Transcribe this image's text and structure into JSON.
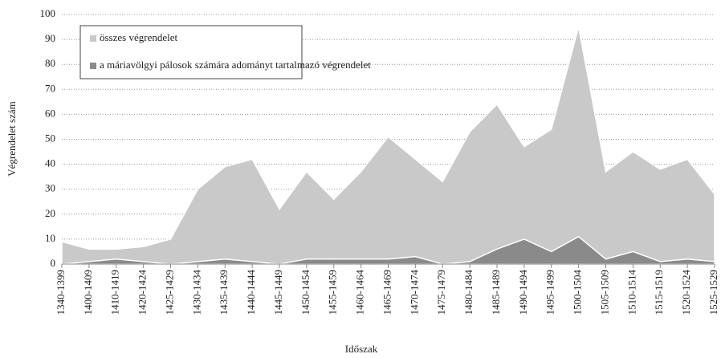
{
  "chart_data": {
    "type": "area",
    "x_label": "Időszak",
    "y_label": "Végrendelet szám",
    "categories": [
      "1340-1399",
      "1400-1409",
      "1410-1419",
      "1420-1424",
      "1425-1429",
      "1430-1434",
      "1435-1439",
      "1440-1444",
      "1445-1449",
      "1450-1454",
      "1455-1459",
      "1460-1464",
      "1465-1469",
      "1470-1474",
      "1475-1479",
      "1480-1484",
      "1485-1489",
      "1490-1494",
      "1495-1499",
      "1500-1504",
      "1505-1509",
      "1510-1514",
      "1515-1519",
      "1520-1524",
      "1525-1529"
    ],
    "series": [
      {
        "name": "összes végrendelet",
        "color": "#c9c9c9",
        "values": [
          9,
          6,
          6,
          7,
          10,
          30,
          39,
          42,
          22,
          37,
          26,
          37,
          51,
          42,
          33,
          53,
          64,
          47,
          54,
          95,
          37,
          45,
          38,
          42,
          28
        ]
      },
      {
        "name": "a máriavölgyi pálosok számára adományt tartalmazó végrendelet",
        "color": "#8a8a8a",
        "values": [
          0,
          1,
          2,
          1,
          0,
          1,
          2,
          1,
          0,
          2,
          2,
          2,
          2,
          3,
          0,
          1,
          6,
          10,
          5,
          11,
          2,
          5,
          1,
          2,
          1
        ]
      }
    ],
    "ylim": [
      0,
      100
    ],
    "yticks": [
      0,
      10,
      20,
      30,
      40,
      50,
      60,
      70,
      80,
      90,
      100
    ],
    "grid": true,
    "legend": "upper left"
  }
}
